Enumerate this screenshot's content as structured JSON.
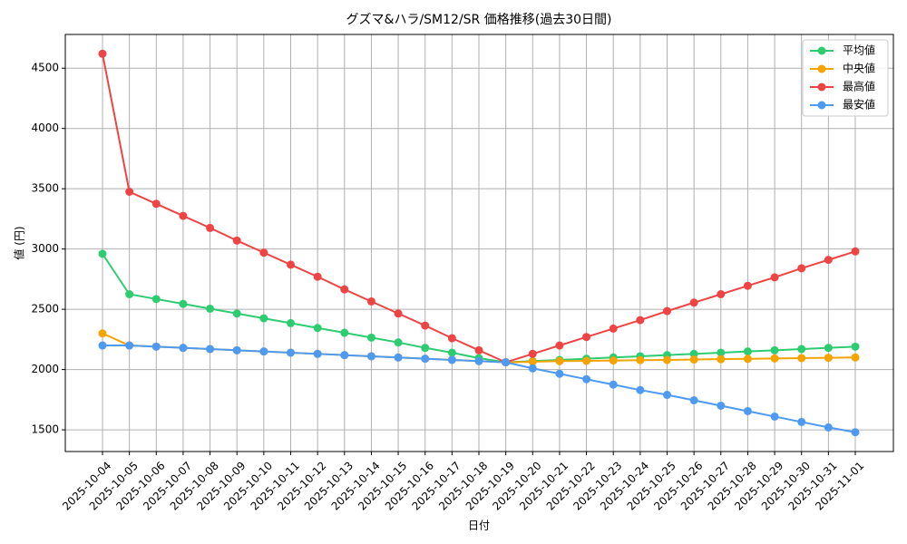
{
  "chart_data": {
    "type": "line",
    "title": "グズマ&ハラ/SM12/SR 価格推移(過去30日間)",
    "x_label": "日付",
    "y_label": "値 (円)",
    "categories": [
      "2025-10-04",
      "2025-10-05",
      "2025-10-06",
      "2025-10-07",
      "2025-10-08",
      "2025-10-09",
      "2025-10-10",
      "2025-10-11",
      "2025-10-12",
      "2025-10-13",
      "2025-10-14",
      "2025-10-15",
      "2025-10-16",
      "2025-10-17",
      "2025-10-18",
      "2025-10-19",
      "2025-10-20",
      "2025-10-21",
      "2025-10-22",
      "2025-10-23",
      "2025-10-24",
      "2025-10-25",
      "2025-10-26",
      "2025-10-27",
      "2025-10-28",
      "2025-10-29",
      "2025-10-30",
      "2025-10-31",
      "2025-11-01"
    ],
    "series": [
      {
        "name": "平均値",
        "color": "#2ecc71",
        "values": [
          2960,
          2625,
          2585,
          2545,
          2505,
          2465,
          2425,
          2385,
          2345,
          2305,
          2265,
          2225,
          2180,
          2140,
          2095,
          2060,
          2070,
          2080,
          2090,
          2100,
          2110,
          2120,
          2130,
          2140,
          2150,
          2160,
          2170,
          2180,
          2190
        ]
      },
      {
        "name": "中央値",
        "color": "#f5a300",
        "values": [
          2300,
          2200,
          2190,
          2180,
          2170,
          2160,
          2150,
          2140,
          2130,
          2120,
          2110,
          2100,
          2090,
          2080,
          2070,
          2060,
          2065,
          2070,
          2072,
          2075,
          2078,
          2080,
          2083,
          2086,
          2089,
          2092,
          2095,
          2098,
          2100
        ]
      },
      {
        "name": "最高値",
        "color": "#ef4444",
        "values": [
          4620,
          3475,
          3375,
          3275,
          3175,
          3070,
          2970,
          2870,
          2770,
          2665,
          2565,
          2465,
          2365,
          2260,
          2160,
          2060,
          2130,
          2200,
          2270,
          2340,
          2410,
          2485,
          2555,
          2625,
          2695,
          2765,
          2840,
          2910,
          2980
        ]
      },
      {
        "name": "最安値",
        "color": "#4e9af1",
        "values": [
          2200,
          2200,
          2190,
          2180,
          2170,
          2160,
          2150,
          2140,
          2130,
          2120,
          2110,
          2100,
          2090,
          2080,
          2070,
          2060,
          2010,
          1965,
          1920,
          1875,
          1830,
          1790,
          1745,
          1700,
          1655,
          1610,
          1565,
          1520,
          1480
        ]
      }
    ],
    "ylim": [
      1320,
      4780
    ],
    "yticks": [
      1500,
      2000,
      2500,
      3000,
      3500,
      4000,
      4500
    ],
    "grid": true,
    "legend": "upper right"
  }
}
